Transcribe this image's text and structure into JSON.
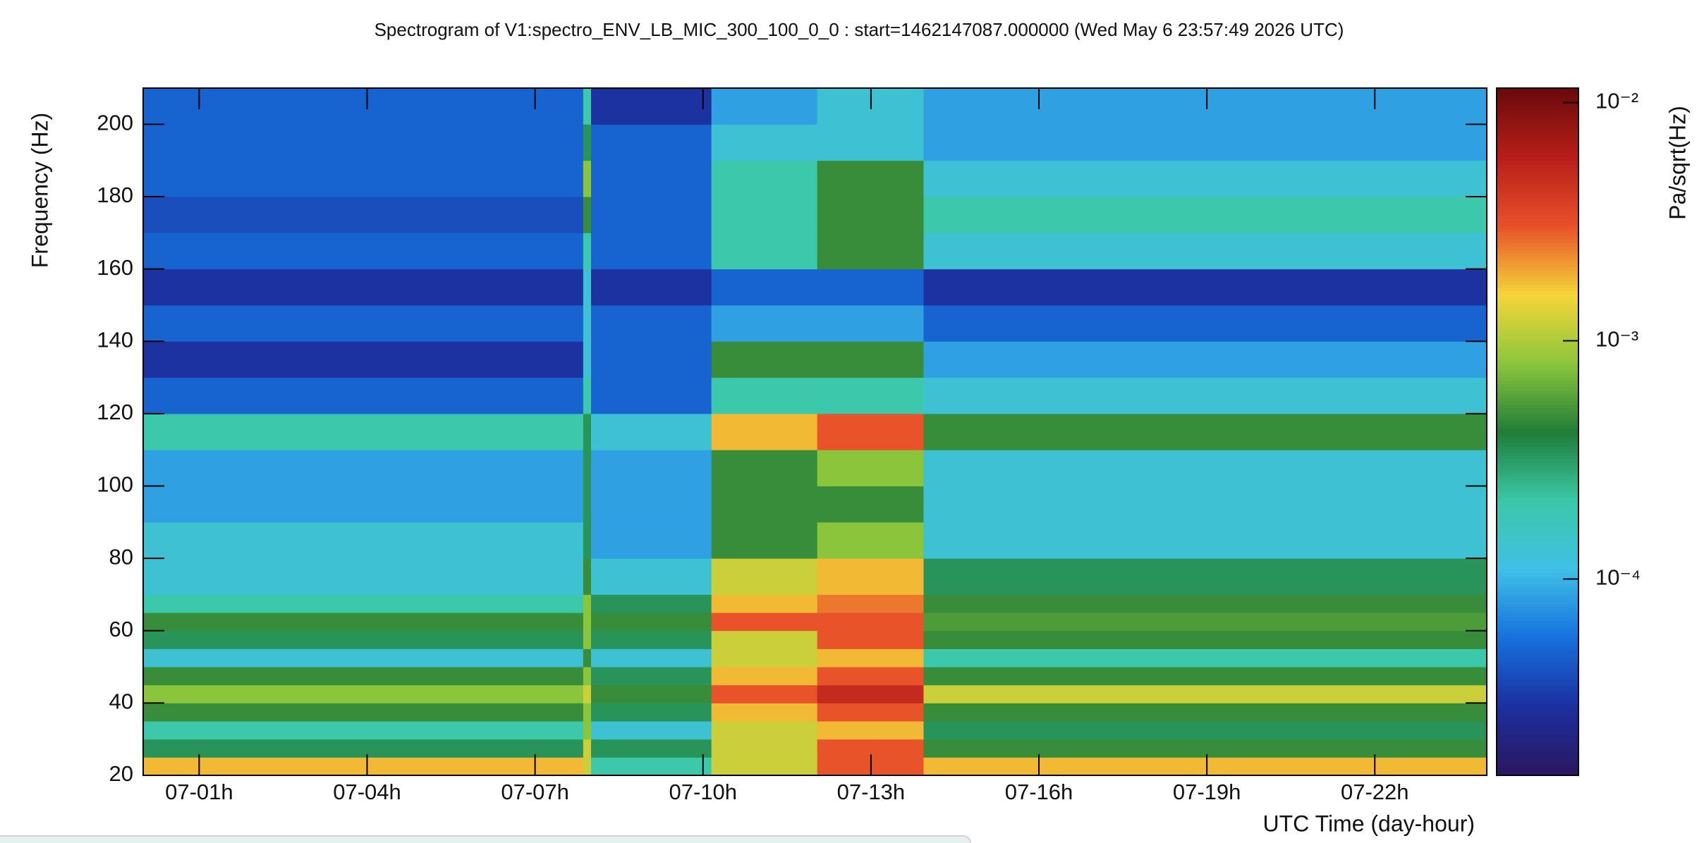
{
  "chart_data": {
    "type": "heatmap",
    "title": "Spectrogram of V1:spectro_ENV_LB_MIC_300_100_0_0 : start=1462147087.000000 (Wed May  6 23:57:49 2026 UTC)",
    "x_label": "UTC Time (day-hour)",
    "y_label": "Frequency (Hz)",
    "z_label": "Pa/sqrt(Hz)",
    "xlim": [
      0,
      24
    ],
    "xticks": [
      {
        "value": 1,
        "label": "07-01h"
      },
      {
        "value": 4,
        "label": "07-04h"
      },
      {
        "value": 7,
        "label": "07-07h"
      },
      {
        "value": 10,
        "label": "07-10h"
      },
      {
        "value": 13,
        "label": "07-13h"
      },
      {
        "value": 16,
        "label": "07-16h"
      },
      {
        "value": 19,
        "label": "07-19h"
      },
      {
        "value": 22,
        "label": "07-22h"
      }
    ],
    "ylim": [
      20,
      210
    ],
    "yticks": [
      20,
      40,
      60,
      80,
      100,
      120,
      140,
      160,
      180,
      200
    ],
    "zlim": [
      1.5e-05,
      0.0115
    ],
    "zlog": true,
    "zticks": [
      {
        "value": 0.01,
        "label": "10⁻²"
      },
      {
        "value": 0.001,
        "label": "10⁻³"
      },
      {
        "value": 0.0001,
        "label": "10⁻⁴"
      }
    ],
    "colormap": [
      "#2b1660",
      "#1c2f9e",
      "#1670dd",
      "#3fc0e6",
      "#3cc8a8",
      "#1f7d38",
      "#8cc63c",
      "#f5d538",
      "#e8502a",
      "#b81e1a",
      "#6a0a0a"
    ],
    "x_edges": [
      0,
      7.86,
      8.0,
      10.15,
      12.04,
      13.94,
      24
    ],
    "y_edges": [
      20,
      25,
      30,
      35,
      40,
      45,
      50,
      55,
      60,
      65,
      70,
      80,
      90,
      100,
      110,
      120,
      130,
      140,
      150,
      160,
      170,
      180,
      190,
      200,
      210
    ],
    "z": [
      [
        0.0018,
        0.0012,
        0.00021,
        0.0012,
        0.003,
        0.0018
      ],
      [
        0.00034,
        0.0012,
        0.00034,
        0.0012,
        0.003,
        0.00048
      ],
      [
        0.00021,
        0.0008,
        0.000135,
        0.0012,
        0.0018,
        0.00034
      ],
      [
        0.00048,
        0.0008,
        0.00034,
        0.0018,
        0.003,
        0.00048
      ],
      [
        0.0008,
        0.0012,
        0.00048,
        0.003,
        0.005,
        0.0012
      ],
      [
        0.00048,
        0.0008,
        0.00034,
        0.0018,
        0.003,
        0.00048
      ],
      [
        0.000135,
        0.00048,
        0.000135,
        0.0012,
        0.0018,
        0.00021
      ],
      [
        0.00034,
        0.0008,
        0.00034,
        0.0012,
        0.003,
        0.00048
      ],
      [
        0.00048,
        0.0008,
        0.00048,
        0.003,
        0.003,
        0.00055
      ],
      [
        0.00021,
        0.0008,
        0.00034,
        0.0018,
        0.0025,
        0.00048
      ],
      [
        0.000135,
        0.00048,
        0.000135,
        0.0012,
        0.0018,
        0.00034
      ],
      [
        0.000135,
        0.00034,
        8.5e-05,
        0.00048,
        0.0008,
        0.000135
      ],
      [
        8.5e-05,
        0.00034,
        8.5e-05,
        0.00048,
        0.00048,
        0.000135
      ],
      [
        8.5e-05,
        0.00034,
        8.5e-05,
        0.00048,
        0.0008,
        0.000135
      ],
      [
        0.00021,
        0.00034,
        0.000135,
        0.0018,
        0.003,
        0.00048
      ],
      [
        5e-05,
        0.00021,
        5e-05,
        0.00021,
        0.00021,
        0.000135
      ],
      [
        3e-05,
        0.000135,
        5e-05,
        0.00048,
        0.00048,
        8.5e-05
      ],
      [
        5e-05,
        0.000135,
        5e-05,
        8.5e-05,
        8.5e-05,
        5e-05
      ],
      [
        3e-05,
        0.000135,
        3e-05,
        5e-05,
        5e-05,
        3e-05
      ],
      [
        5e-05,
        0.00021,
        5e-05,
        0.00021,
        0.00048,
        0.000135
      ],
      [
        4e-05,
        0.00048,
        5e-05,
        0.00021,
        0.00048,
        0.00021
      ],
      [
        5e-05,
        0.0008,
        5e-05,
        0.00021,
        0.00048,
        0.000135
      ],
      [
        5e-05,
        0.00034,
        5e-05,
        0.000135,
        0.000135,
        8.5e-05
      ],
      [
        5e-05,
        0.00021,
        3e-05,
        8.5e-05,
        0.000135,
        8.5e-05
      ]
    ]
  }
}
